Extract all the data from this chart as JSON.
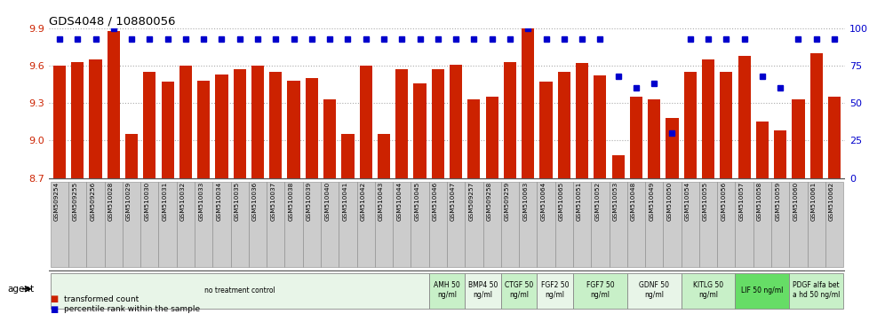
{
  "title": "GDS4048 / 10880056",
  "bar_color": "#cc2200",
  "dot_color": "#0000cc",
  "ylim_left": [
    8.7,
    9.9
  ],
  "ylim_right": [
    0,
    100
  ],
  "yticks_left": [
    8.7,
    9.0,
    9.3,
    9.6,
    9.9
  ],
  "yticks_right": [
    0,
    25,
    50,
    75,
    100
  ],
  "categories": [
    "GSM509254",
    "GSM509255",
    "GSM509256",
    "GSM510028",
    "GSM510029",
    "GSM510030",
    "GSM510031",
    "GSM510032",
    "GSM510033",
    "GSM510034",
    "GSM510035",
    "GSM510036",
    "GSM510037",
    "GSM510038",
    "GSM510039",
    "GSM510040",
    "GSM510041",
    "GSM510042",
    "GSM510043",
    "GSM510044",
    "GSM510045",
    "GSM510046",
    "GSM510047",
    "GSM509257",
    "GSM509258",
    "GSM509259",
    "GSM510063",
    "GSM510064",
    "GSM510065",
    "GSM510051",
    "GSM510052",
    "GSM510053",
    "GSM510048",
    "GSM510049",
    "GSM510050",
    "GSM510054",
    "GSM510055",
    "GSM510056",
    "GSM510057",
    "GSM510058",
    "GSM510059",
    "GSM510060",
    "GSM510061",
    "GSM510062"
  ],
  "bar_values": [
    9.6,
    9.63,
    9.65,
    9.88,
    9.05,
    9.55,
    9.47,
    9.6,
    9.48,
    9.53,
    9.57,
    9.6,
    9.55,
    9.48,
    9.5,
    9.33,
    9.05,
    9.6,
    9.05,
    9.57,
    9.46,
    9.57,
    9.61,
    9.33,
    9.35,
    9.63,
    9.98,
    9.47,
    9.55,
    9.62,
    9.52,
    8.88,
    9.35,
    9.33,
    9.18,
    9.55,
    9.65,
    9.55,
    9.68,
    9.15,
    9.08,
    9.33,
    9.7,
    9.35
  ],
  "percentile_values": [
    93,
    93,
    93,
    100,
    93,
    93,
    93,
    93,
    93,
    93,
    93,
    93,
    93,
    93,
    93,
    93,
    93,
    93,
    93,
    93,
    93,
    93,
    93,
    93,
    93,
    93,
    100,
    93,
    93,
    93,
    93,
    68,
    60,
    63,
    30,
    93,
    93,
    93,
    93,
    68,
    60,
    93,
    93,
    93
  ],
  "agent_groups": [
    {
      "label": "no treatment control",
      "start": 0,
      "end": 21,
      "color": "#e8f5e8",
      "bright": false
    },
    {
      "label": "AMH 50\nng/ml",
      "start": 21,
      "end": 23,
      "color": "#c8f0c8",
      "bright": false
    },
    {
      "label": "BMP4 50\nng/ml",
      "start": 23,
      "end": 25,
      "color": "#e8f5e8",
      "bright": false
    },
    {
      "label": "CTGF 50\nng/ml",
      "start": 25,
      "end": 27,
      "color": "#c8f0c8",
      "bright": false
    },
    {
      "label": "FGF2 50\nng/ml",
      "start": 27,
      "end": 29,
      "color": "#e8f5e8",
      "bright": false
    },
    {
      "label": "FGF7 50\nng/ml",
      "start": 29,
      "end": 32,
      "color": "#c8f0c8",
      "bright": false
    },
    {
      "label": "GDNF 50\nng/ml",
      "start": 32,
      "end": 35,
      "color": "#e8f5e8",
      "bright": false
    },
    {
      "label": "KITLG 50\nng/ml",
      "start": 35,
      "end": 38,
      "color": "#c8f0c8",
      "bright": false
    },
    {
      "label": "LIF 50 ng/ml",
      "start": 38,
      "end": 41,
      "color": "#66dd66",
      "bright": true
    },
    {
      "label": "PDGF alfa bet\na hd 50 ng/ml",
      "start": 41,
      "end": 44,
      "color": "#c8f0c8",
      "bright": false
    }
  ],
  "background_color": "#ffffff",
  "plot_bg_color": "#ffffff",
  "label_box_color": "#cccccc",
  "label_box_edge": "#888888"
}
